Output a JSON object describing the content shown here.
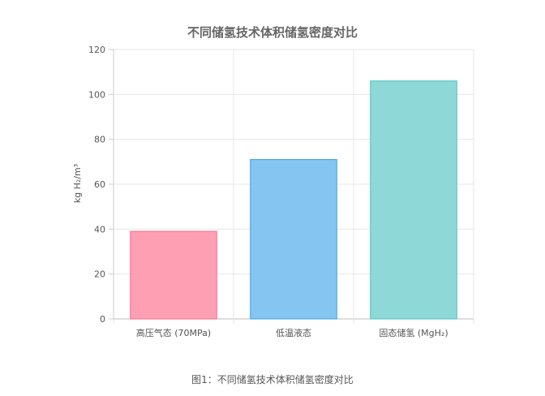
{
  "chart_data": {
    "type": "bar",
    "title": "不同储氢技术体积储氢密度对比",
    "xlabel": "",
    "ylabel": "kg H₂/m³",
    "ylim": [
      0,
      120
    ],
    "yticks": [
      0,
      20,
      40,
      60,
      80,
      100,
      120
    ],
    "grid": true,
    "legend": "none",
    "categories": [
      "高压气态 (70MPa)",
      "低温液态",
      "固态储氢 (MgH₂)"
    ],
    "series": [
      {
        "values": [
          39,
          71,
          106
        ],
        "colors": [
          "#ff9fb4",
          "#84c5f1",
          "#8ed8d8"
        ],
        "borderColors": [
          "#ff6a8c",
          "#3ea2e5",
          "#4fc0c0"
        ]
      }
    ]
  },
  "caption": "图1：不同储氢技术体积储氢密度对比"
}
